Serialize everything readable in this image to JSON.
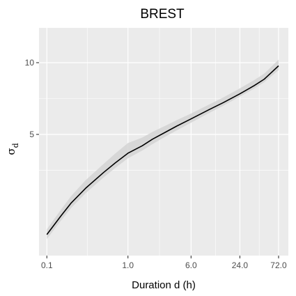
{
  "chart_data": {
    "type": "line",
    "title": "BREST",
    "xlabel": "Duration d (h)",
    "ylabel": {
      "main": "σ",
      "sub": "d"
    },
    "x_scale": "log",
    "y_scale": "log",
    "xlim": [
      0.08,
      95
    ],
    "ylim": [
      1.55,
      14
    ],
    "x_ticks": [
      {
        "value": 0.1,
        "label": "0.1"
      },
      {
        "value": 1.0,
        "label": "1.0"
      },
      {
        "value": 6.0,
        "label": "6.0"
      },
      {
        "value": 24.0,
        "label": "24.0"
      },
      {
        "value": 72.0,
        "label": "72.0"
      }
    ],
    "y_ticks": [
      {
        "value": 10,
        "label": "10"
      },
      {
        "value": 5,
        "label": "5"
      }
    ],
    "grid": true,
    "legend": "none",
    "colors": {
      "panel": "#ebebeb",
      "grid": "#ffffff",
      "line": "#000000",
      "ribbon": "#d3d3d3"
    },
    "series": [
      {
        "x": [
          0.1,
          0.15,
          0.2,
          0.3,
          0.5,
          0.7,
          1.0,
          1.5,
          2.0,
          3.0,
          4.0,
          6.0,
          10.0,
          15.0,
          24.0,
          36.0,
          48.0,
          72.0
        ],
        "values": [
          1.9,
          2.28,
          2.58,
          2.97,
          3.46,
          3.8,
          4.17,
          4.48,
          4.77,
          5.14,
          5.42,
          5.81,
          6.35,
          6.8,
          7.4,
          8.01,
          8.53,
          9.7
        ],
        "lower": [
          1.82,
          2.18,
          2.46,
          2.83,
          3.3,
          3.62,
          3.97,
          4.28,
          4.55,
          4.93,
          5.2,
          5.6,
          6.15,
          6.6,
          7.2,
          7.78,
          8.28,
          9.3
        ],
        "upper": [
          2.0,
          2.42,
          2.76,
          3.21,
          3.76,
          4.16,
          4.6,
          4.85,
          5.12,
          5.47,
          5.74,
          6.12,
          6.67,
          7.15,
          7.8,
          8.45,
          9.0,
          10.3
        ]
      }
    ]
  }
}
